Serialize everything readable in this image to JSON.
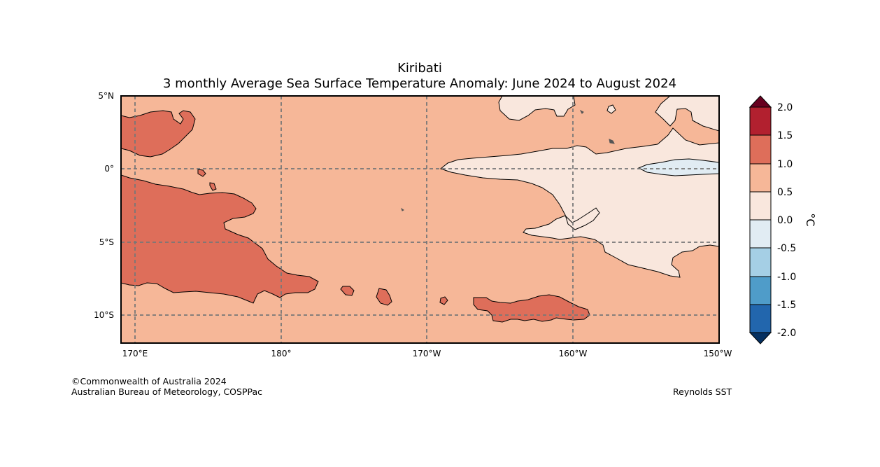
{
  "title": {
    "line1": "Kiribati",
    "line2": "3 monthly Average Sea Surface Temperature Anomaly: June 2024 to August 2024"
  },
  "map": {
    "lon_labels": [
      "170°E",
      "180°",
      "170°W",
      "160°W",
      "150°W"
    ],
    "lat_labels": [
      "5°N",
      "0°",
      "5°S",
      "10°S"
    ]
  },
  "colorbar": {
    "unit": "°C",
    "tick_labels": [
      "2.0",
      "1.5",
      "1.0",
      "0.5",
      "0.0",
      "-0.5",
      "-1.0",
      "-1.5",
      "-2.0"
    ],
    "bins": [
      {
        "range": "above 2.0",
        "color": "#67001f"
      },
      {
        "range": "1.5 to 2.0",
        "color": "#b2202f"
      },
      {
        "range": "1.0 to 1.5",
        "color": "#de6e5a"
      },
      {
        "range": "0.5 to 1.0",
        "color": "#f6b798"
      },
      {
        "range": "0.0 to 0.5",
        "color": "#f9e7dd"
      },
      {
        "range": "-0.5 to 0.0",
        "color": "#e1ecf3"
      },
      {
        "range": "-1.0 to -0.5",
        "color": "#a5cfe5"
      },
      {
        "range": "-1.5 to -1.0",
        "color": "#4f9cc9"
      },
      {
        "range": "-2.0 to -1.5",
        "color": "#2266ad"
      },
      {
        "range": "below -2.0",
        "color": "#053061"
      }
    ]
  },
  "credits": {
    "copyright": "©Commonwealth of Australia 2024",
    "agency": "Australian Bureau of Meteorology, COSPPac",
    "source": "Reynolds SST"
  }
}
